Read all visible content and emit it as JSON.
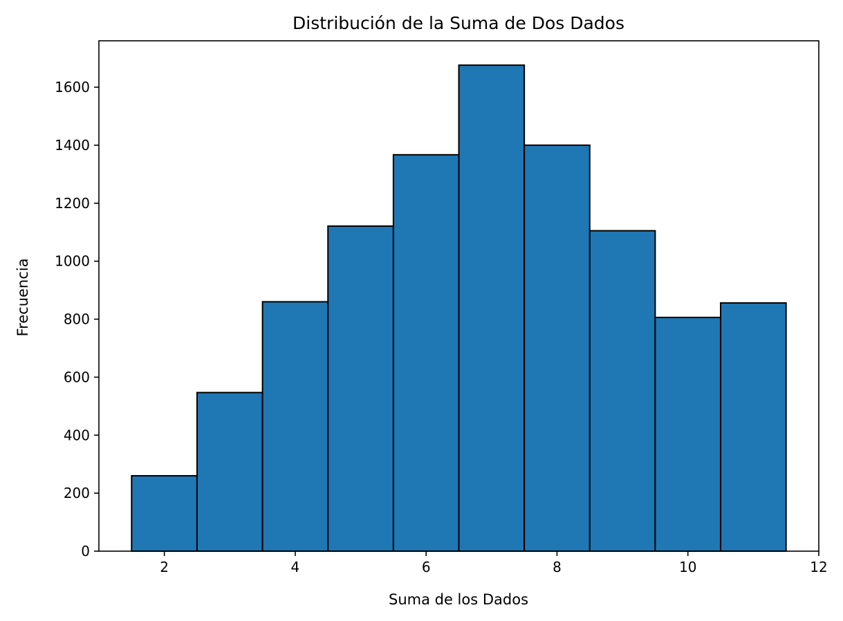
{
  "chart_data": {
    "type": "bar",
    "title": "Distribución de la Suma de Dos Dados",
    "xlabel": "Suma de los Dados",
    "ylabel": "Frecuencia",
    "bins": [
      {
        "x": 2,
        "value": 260
      },
      {
        "x": 3,
        "value": 547
      },
      {
        "x": 4,
        "value": 860
      },
      {
        "x": 5,
        "value": 1121
      },
      {
        "x": 6,
        "value": 1367
      },
      {
        "x": 7,
        "value": 1676
      },
      {
        "x": 8,
        "value": 1400
      },
      {
        "x": 9,
        "value": 1105
      },
      {
        "x": 10,
        "value": 806
      },
      {
        "x": 11,
        "value": 856
      }
    ],
    "bin_width": 1,
    "xlim": [
      1,
      12
    ],
    "ylim": [
      0,
      1760
    ],
    "x_ticks": [
      "2",
      "4",
      "6",
      "8",
      "10",
      "12"
    ],
    "y_ticks": [
      "0",
      "200",
      "400",
      "600",
      "800",
      "1000",
      "1200",
      "1400",
      "1600"
    ],
    "bar_color": "#1f77b4",
    "edge_color": "#000000",
    "grid": false,
    "legend": "none"
  }
}
